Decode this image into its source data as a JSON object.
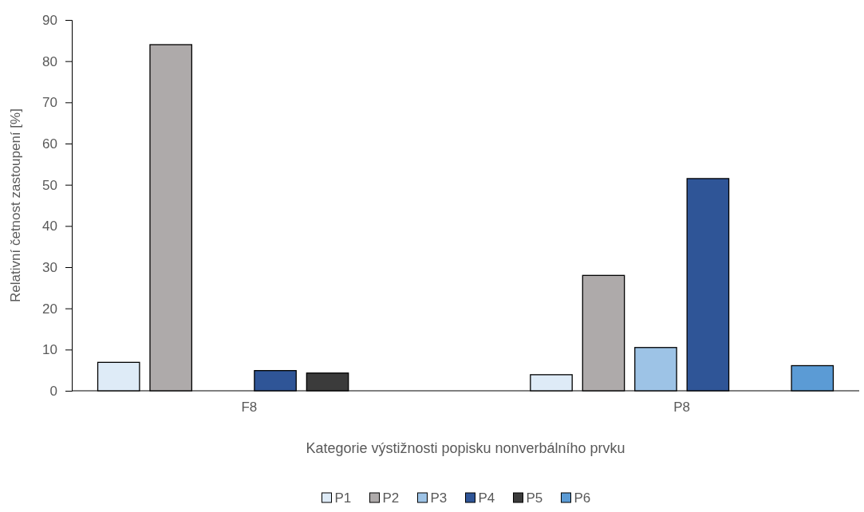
{
  "chart_data": {
    "type": "bar",
    "xlabel": "Kategorie výstižnosti popisku nonverbálního prvku",
    "ylabel": "Relativní četnost zastoupení [%]",
    "categories": [
      "F8",
      "P8"
    ],
    "series": [
      {
        "name": "P1",
        "color": "#deebf7",
        "values": [
          6.9,
          3.9
        ]
      },
      {
        "name": "P2",
        "color": "#aeaaaa",
        "values": [
          84,
          28
        ]
      },
      {
        "name": "P3",
        "color": "#9dc3e6",
        "values": [
          0,
          10.5
        ]
      },
      {
        "name": "P4",
        "color": "#2f5597",
        "values": [
          4.9,
          51.5
        ]
      },
      {
        "name": "P5",
        "color": "#3b3b3b",
        "values": [
          4.3,
          0
        ]
      },
      {
        "name": "P6",
        "color": "#5b9bd5",
        "values": [
          0,
          6.1
        ]
      }
    ],
    "ylim": [
      0,
      90
    ],
    "yticks": [
      0,
      10,
      20,
      30,
      40,
      50,
      60,
      70,
      80,
      90
    ],
    "grid": false,
    "legend": "bottom"
  }
}
